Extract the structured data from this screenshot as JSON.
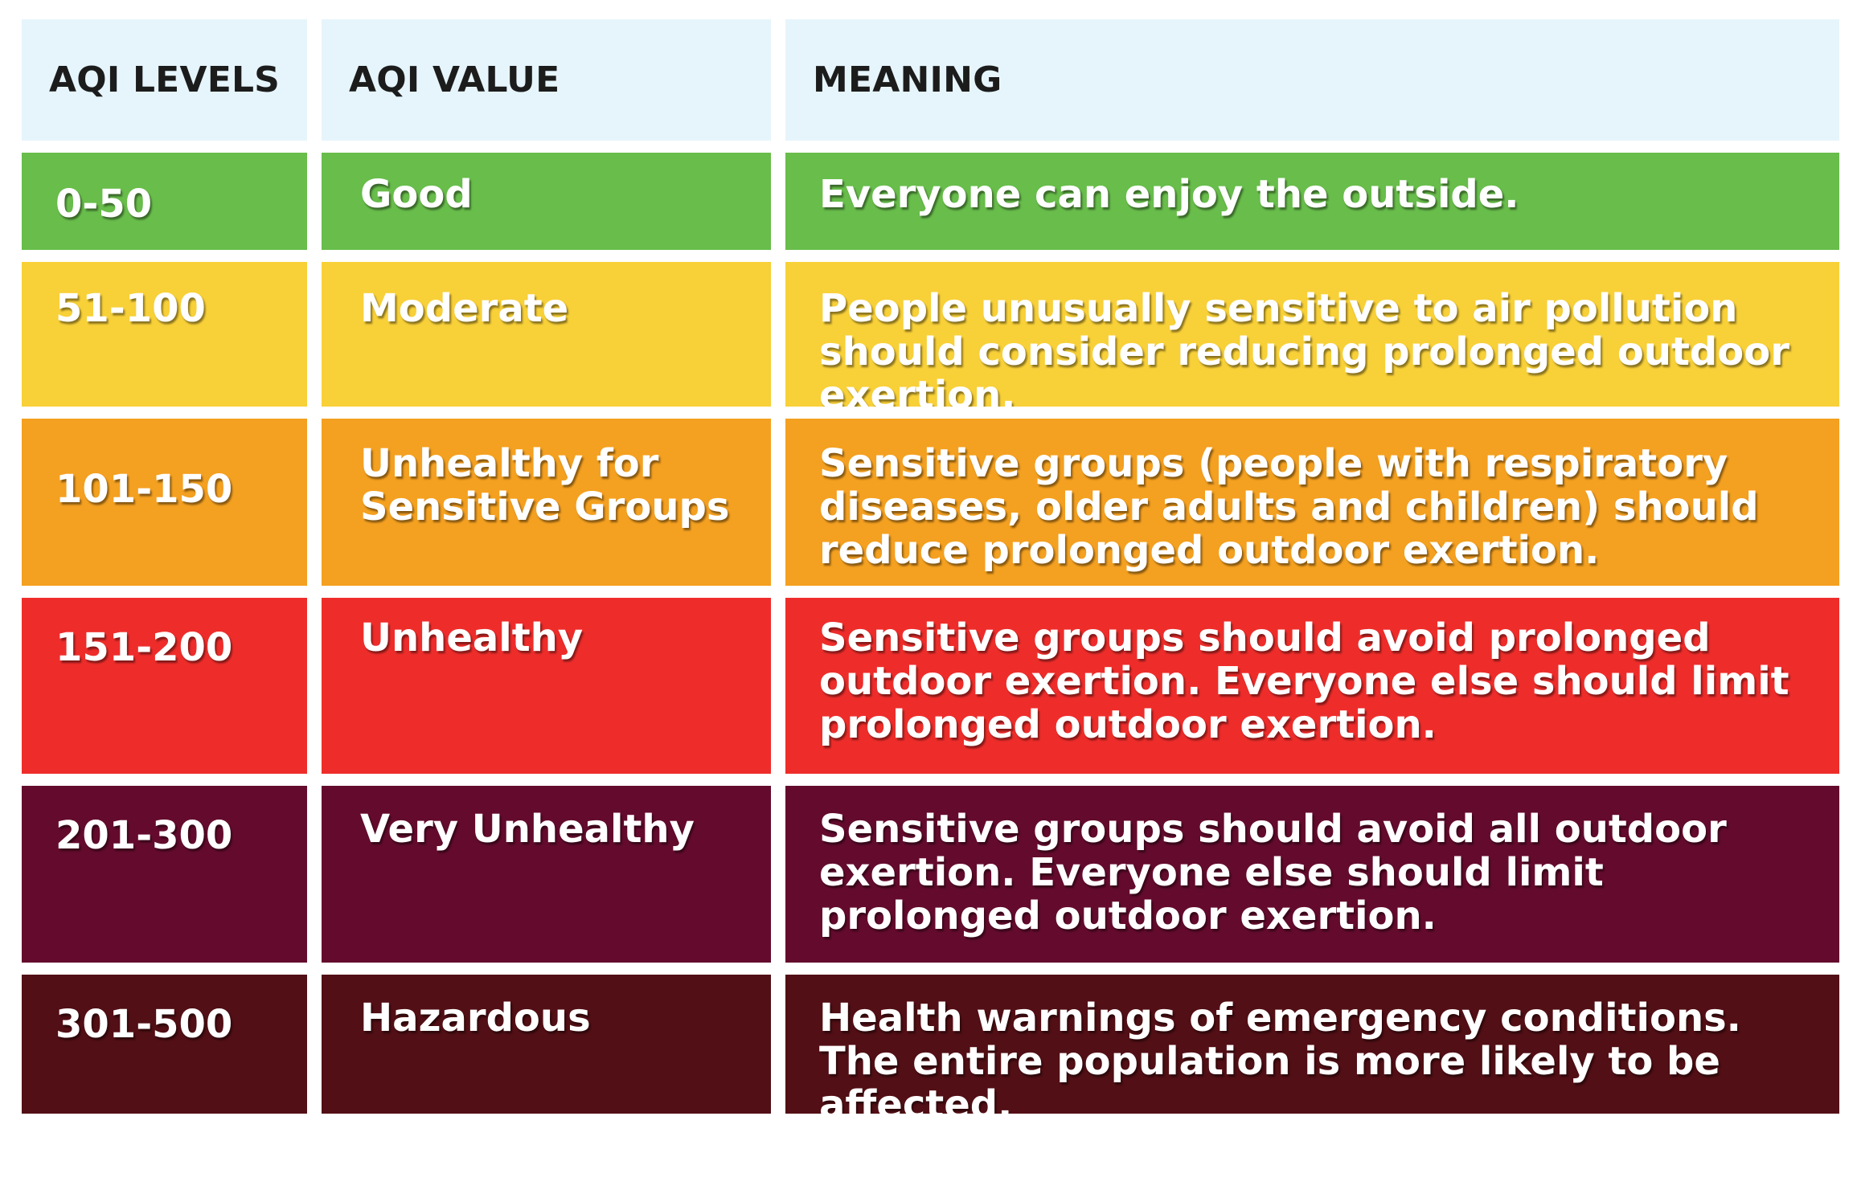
{
  "header": {
    "levels_label": "AQI LEVELS",
    "value_label": "AQI VALUE",
    "meaning_label": "MEANING"
  },
  "colors": {
    "header_bg": "#e6f5fb",
    "good": "#68bd4b",
    "moderate": "#f8d038",
    "usg": "#f4a020",
    "unhealthy": "#ee2d2b",
    "very_unhealthy": "#640b2d",
    "hazardous": "#520f15"
  },
  "rows": [
    {
      "level": "0-50",
      "value": "Good",
      "meaning": "Everyone can enjoy the outside."
    },
    {
      "level": "51-100",
      "value": "Moderate",
      "meaning": "People unusually sensitive to air pollution should consider reducing prolonged outdoor exertion."
    },
    {
      "level": "101-150",
      "value": "Unhealthy for Sensitive Groups",
      "meaning": "Sensitive groups (people with respiratory diseases, older adults and children) should reduce prolonged outdoor exertion."
    },
    {
      "level": "151-200",
      "value": "Unhealthy",
      "meaning": "Sensitive groups should avoid prolonged outdoor exertion. Everyone else should limit prolonged outdoor exertion."
    },
    {
      "level": "201-300",
      "value": "Very Unhealthy",
      "meaning": "Sensitive groups should avoid all outdoor exertion. Everyone else should limit prolonged outdoor exertion."
    },
    {
      "level": "301-500",
      "value": "Hazardous",
      "meaning": "Health warnings of emergency conditions. The entire population is more likely to be affected."
    }
  ]
}
